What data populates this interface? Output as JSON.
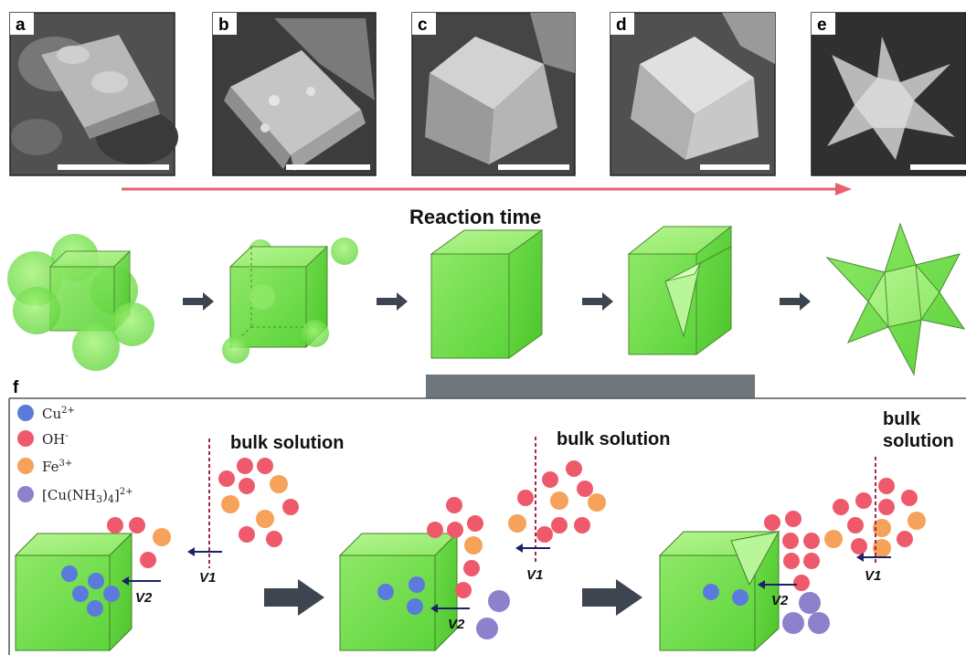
{
  "panels": [
    {
      "letter": "a",
      "kind": "rough"
    },
    {
      "letter": "b",
      "kind": "cube"
    },
    {
      "letter": "c",
      "kind": "cube"
    },
    {
      "letter": "d",
      "kind": "octa"
    },
    {
      "letter": "e",
      "kind": "star"
    }
  ],
  "reaction_time_label": "Reaction time",
  "panel_f_letter": "f",
  "legend": {
    "cu": {
      "text": "Cu",
      "sup": "2+",
      "color": "#5b7bdc"
    },
    "oh": {
      "text": "OH",
      "sup": "-",
      "color": "#ee5a6b"
    },
    "fe": {
      "text": "Fe",
      "sup": "3+",
      "color": "#f6a25a"
    },
    "complex": {
      "pre": "[Cu(NH",
      "sub": "3",
      "mid": ")",
      "sub2": "4",
      "post": "]",
      "sup": "2+",
      "color": "#8c82cc"
    }
  },
  "bulk_solution": "bulk solution",
  "bulk_word1": "bulk",
  "bulk_word2": "solution",
  "v1": "V1",
  "v2": "V2",
  "colors": {
    "arrow_red": "#e86070",
    "cube_green": "#6ee04a",
    "dark_arrow": "#3d4650",
    "dashed_line": "#a0284a",
    "velocity_arrow": "#1a2266",
    "bar_gray": "#6e777e"
  }
}
